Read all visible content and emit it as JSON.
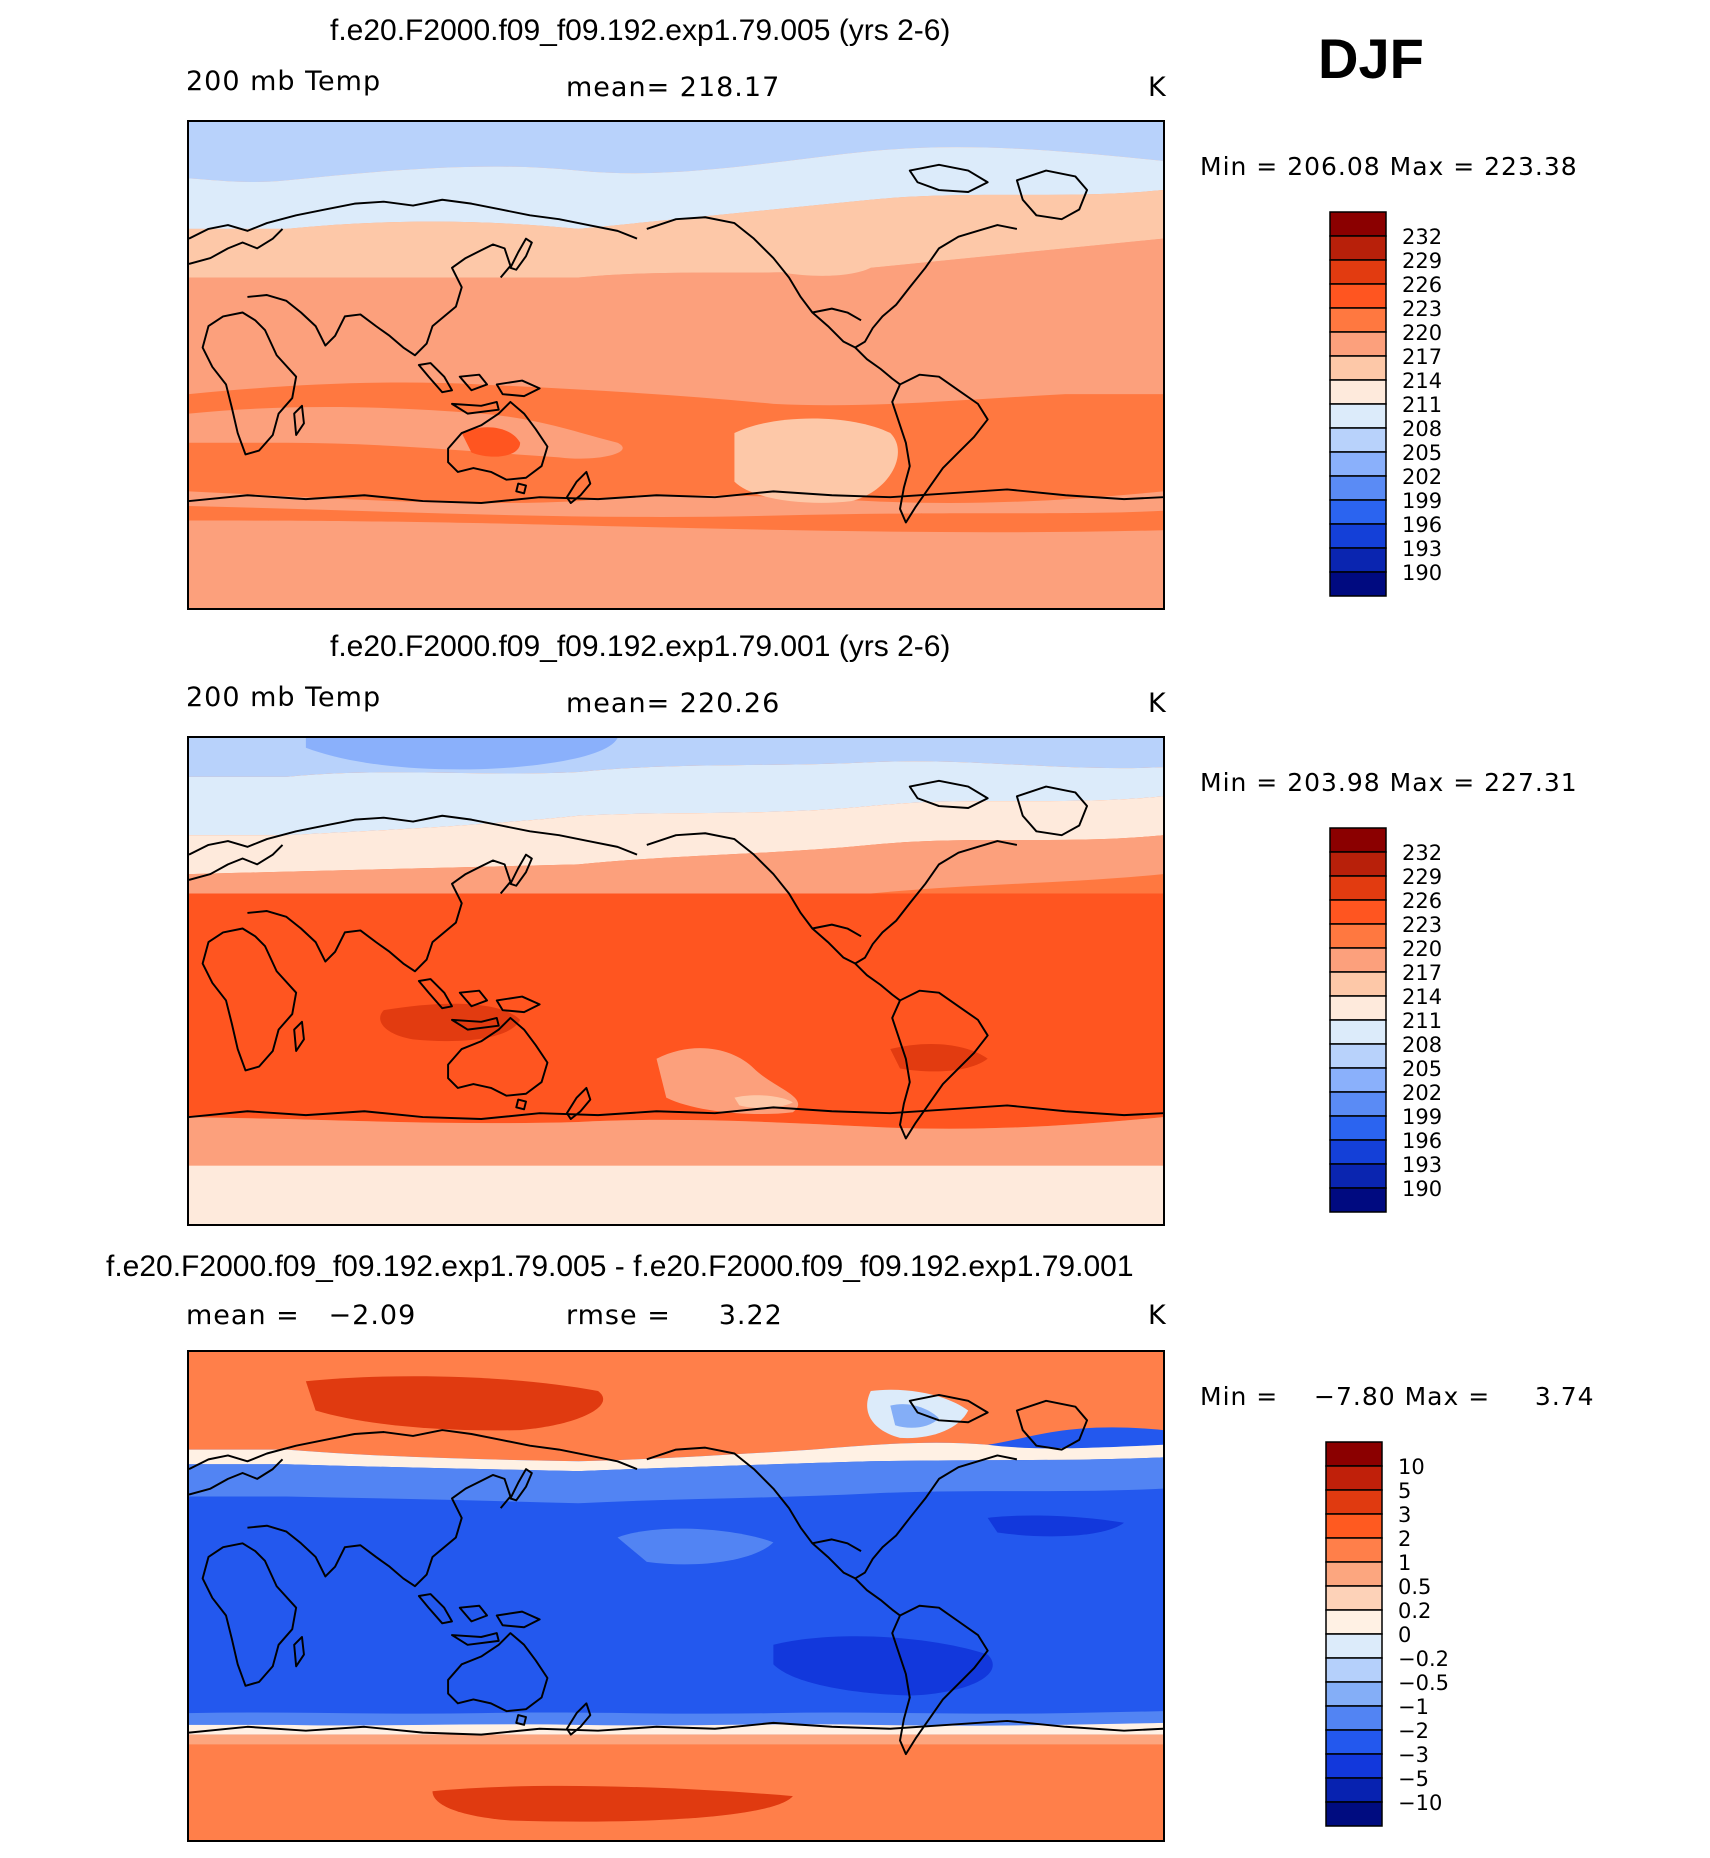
{
  "season": "DJF",
  "panels": [
    {
      "title": "f.e20.F2000.f09_f09.192.exp1.79.005 (yrs 2-6)",
      "left_label": "200 mb Temp",
      "center_label": "mean= 218.17",
      "units": "K",
      "min_max": "Min = 206.08 Max = 223.38",
      "palette_key": "abs",
      "levels": [
        "232",
        "229",
        "226",
        "223",
        "220",
        "217",
        "214",
        "211",
        "208",
        "205",
        "202",
        "199",
        "196",
        "193",
        "190"
      ]
    },
    {
      "title": "f.e20.F2000.f09_f09.192.exp1.79.001 (yrs 2-6)",
      "left_label": "200 mb Temp",
      "center_label": "mean= 220.26",
      "units": "K",
      "min_max": "Min = 203.98 Max = 227.31",
      "palette_key": "abs",
      "levels": [
        "232",
        "229",
        "226",
        "223",
        "220",
        "217",
        "214",
        "211",
        "208",
        "205",
        "202",
        "199",
        "196",
        "193",
        "190"
      ]
    },
    {
      "title": "f.e20.F2000.f09_f09.192.exp1.79.005 - f.e20.F2000.f09_f09.192.exp1.79.001",
      "left_label": "mean =   −2.09",
      "center_label": "rmse =     3.22",
      "units": "K",
      "min_max": "Min =    −7.80 Max =     3.74",
      "palette_key": "diff",
      "levels": [
        "10",
        "5",
        "3",
        "2",
        "1",
        "0.5",
        "0.2",
        "0",
        "−0.2",
        "−0.5",
        "−1",
        "−2",
        "−3",
        "−5",
        "−10"
      ]
    }
  ],
  "palettes": {
    "abs": [
      "#8b0000",
      "#b8200a",
      "#e23b10",
      "#ff5520",
      "#ff7840",
      "#fca07c",
      "#fdc8a8",
      "#feeadc",
      "#dcebfa",
      "#b8d2fb",
      "#8ab0fb",
      "#5a8bf5",
      "#2b64f0",
      "#1440d8",
      "#0a25b0",
      "#000a80"
    ],
    "diff": [
      "#8b0000",
      "#c0200a",
      "#e03a10",
      "#ff5a20",
      "#ff7f4a",
      "#fca67f",
      "#fdd2b8",
      "#fff1e4",
      "#dcebfa",
      "#b5d0fb",
      "#84aef7",
      "#5284f3",
      "#2358ee",
      "#1238dc",
      "#0722b0",
      "#000c80"
    ]
  },
  "map_base_colors": {
    "abs_top": "#fca07c",
    "abs_mid": "#ff7840"
  },
  "chart_data": {
    "type": "heatmap",
    "field": "200 mb Temp",
    "season": "DJF",
    "units": "K",
    "panels": [
      {
        "case": "f.e20.F2000.f09_f09.192.exp1.79.005",
        "years": "yrs 2-6",
        "mean": 218.17,
        "min": 206.08,
        "max": 223.38,
        "contour_levels": [
          190,
          193,
          196,
          199,
          202,
          205,
          208,
          211,
          214,
          217,
          220,
          223,
          226,
          229,
          232
        ]
      },
      {
        "case": "f.e20.F2000.f09_f09.192.exp1.79.001",
        "years": "yrs 2-6",
        "mean": 220.26,
        "min": 203.98,
        "max": 227.31,
        "contour_levels": [
          190,
          193,
          196,
          199,
          202,
          205,
          208,
          211,
          214,
          217,
          220,
          223,
          226,
          229,
          232
        ]
      },
      {
        "case": "f.e20.F2000.f09_f09.192.exp1.79.005 - f.e20.F2000.f09_f09.192.exp1.79.001",
        "mean": -2.09,
        "rmse": 3.22,
        "min": -7.8,
        "max": 3.74,
        "contour_levels": [
          -10,
          -5,
          -3,
          -2,
          -1,
          -0.5,
          -0.2,
          0,
          0.2,
          0.5,
          1,
          2,
          3,
          5,
          10
        ]
      }
    ]
  }
}
